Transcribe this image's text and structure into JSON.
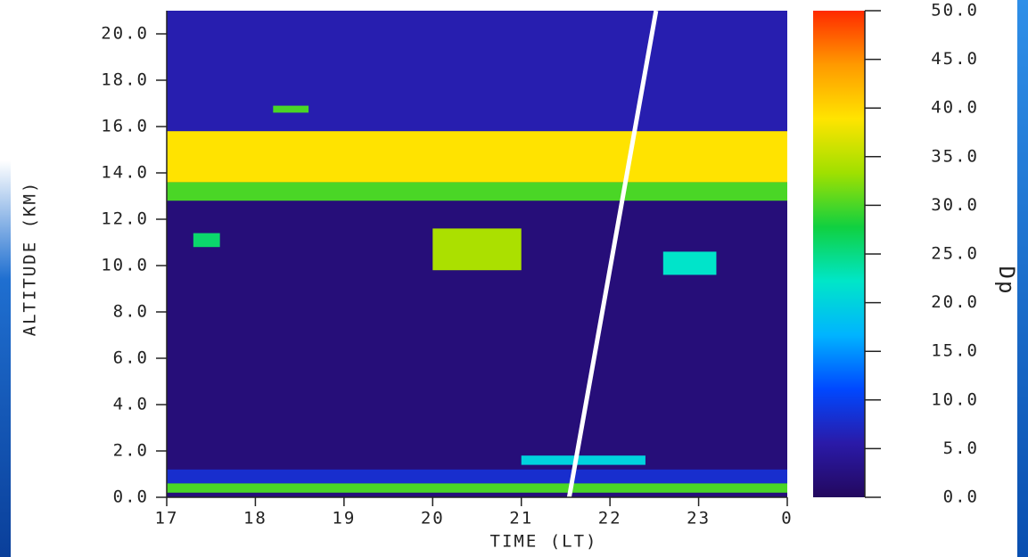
{
  "chart_data": {
    "type": "heatmap",
    "x_label": "TIME (LT)",
    "y_label": "ALTITUDE (KM)",
    "colorbar_label": "Dp",
    "xlim": [
      17,
      24
    ],
    "xticks": [
      17,
      18,
      19,
      20,
      21,
      22,
      23,
      {
        "value": 24,
        "label": "0"
      }
    ],
    "ylim": [
      0,
      21
    ],
    "yticks": [
      {
        "value": 0,
        "label": "0.0"
      },
      {
        "value": 2,
        "label": "2.0"
      },
      {
        "value": 4,
        "label": "4.0"
      },
      {
        "value": 6,
        "label": "6.0"
      },
      {
        "value": 8,
        "label": "8.0"
      },
      {
        "value": 10,
        "label": "10.0"
      },
      {
        "value": 12,
        "label": "12.0"
      },
      {
        "value": 14,
        "label": "14.0"
      },
      {
        "value": 16,
        "label": "16.0"
      },
      {
        "value": 18,
        "label": "18.0"
      },
      {
        "value": 20,
        "label": "20.0"
      }
    ],
    "clim": [
      0,
      50
    ],
    "cticks": [
      {
        "value": 0,
        "label": "0.0"
      },
      {
        "value": 5,
        "label": "5.0"
      },
      {
        "value": 10,
        "label": "10.0"
      },
      {
        "value": 15,
        "label": "15.0"
      },
      {
        "value": 20,
        "label": "20.0"
      },
      {
        "value": 25,
        "label": "25.0"
      },
      {
        "value": 30,
        "label": "30.0"
      },
      {
        "value": 35,
        "label": "35.0"
      },
      {
        "value": 40,
        "label": "40.0"
      },
      {
        "value": 45,
        "label": "45.0"
      },
      {
        "value": 50,
        "label": "50.0"
      }
    ],
    "colormap": [
      "#23085e",
      "#2a1aa8",
      "#0048ff",
      "#00b4ff",
      "#00e6c8",
      "#10d040",
      "#a0e000",
      "#ffe400",
      "#ff9a00",
      "#ff2a00"
    ],
    "regions": [
      {
        "x": [
          17,
          24
        ],
        "y": [
          0,
          21
        ],
        "value": 2
      },
      {
        "x": [
          17,
          24
        ],
        "y": [
          15.8,
          21
        ],
        "value": 6
      },
      {
        "x": [
          17,
          24
        ],
        "y": [
          0.6,
          1.2
        ],
        "value": 8
      },
      {
        "x": [
          17,
          24
        ],
        "y": [
          0.2,
          0.6
        ],
        "value": 30
      },
      {
        "x": [
          17,
          24
        ],
        "y": [
          12.8,
          13.6
        ],
        "value": 30
      },
      {
        "x": [
          17,
          24
        ],
        "y": [
          13.6,
          15.8
        ],
        "value": 39
      },
      {
        "x": [
          20,
          21
        ],
        "y": [
          9.8,
          11.6
        ],
        "value": 34
      },
      {
        "x": [
          22.6,
          23.2
        ],
        "y": [
          9.6,
          10.6
        ],
        "value": 22
      },
      {
        "x": [
          17.3,
          17.6
        ],
        "y": [
          10.8,
          11.4
        ],
        "value": 26
      },
      {
        "x": [
          18.2,
          18.6
        ],
        "y": [
          16.6,
          16.9
        ],
        "value": 30
      },
      {
        "x": [
          21,
          22.4
        ],
        "y": [
          1.4,
          1.8
        ],
        "value": 20
      }
    ],
    "annotation_line": {
      "x": [
        21.54,
        22.52
      ],
      "y": [
        0,
        21
      ],
      "color": "#ffffff"
    }
  }
}
